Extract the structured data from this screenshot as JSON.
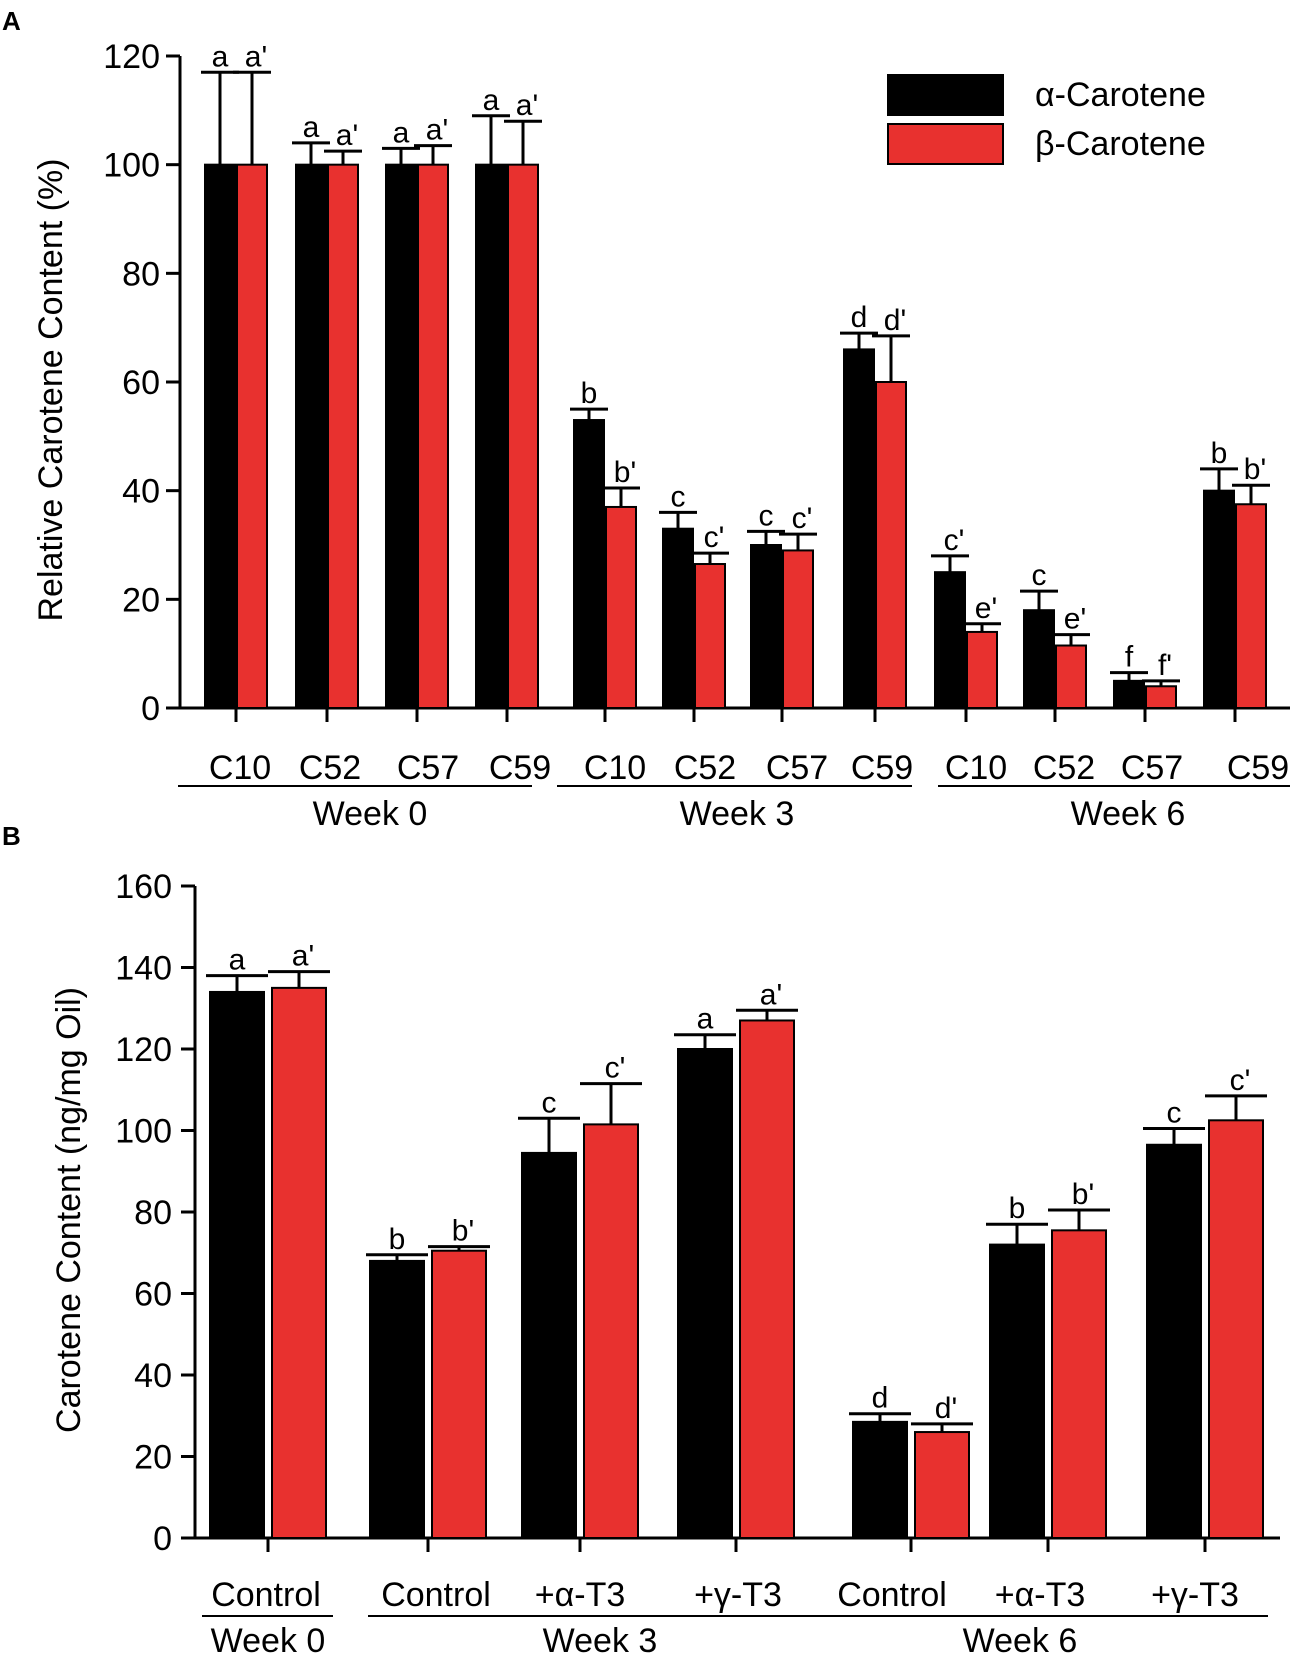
{
  "colors": {
    "alpha": "#000000",
    "beta": "#e8312f",
    "axis": "#000000"
  },
  "chart_data": [
    {
      "panel": "A",
      "type": "bar",
      "ylabel": "Relative Carotene Content (%)",
      "ylim": [
        0,
        120
      ],
      "yticks": [
        "0",
        "20",
        "40",
        "60",
        "80",
        "100",
        "120"
      ],
      "legend": [
        "α-Carotene",
        "β-Carotene"
      ],
      "legend_position": "top-right",
      "categories": [
        "C10",
        "C52",
        "C57",
        "C59",
        "C10",
        "C52",
        "C57",
        "C59",
        "C10",
        "C52",
        "C57",
        "C59"
      ],
      "group_labels": [
        "Week 0",
        "Week 3",
        "Week 6"
      ],
      "series": [
        {
          "name": "α-Carotene",
          "values": [
            100,
            100,
            100,
            100,
            53,
            33,
            30,
            66,
            25,
            18,
            5,
            40
          ],
          "errors": [
            17,
            4,
            3,
            9,
            2,
            3,
            2.5,
            3,
            3,
            3.5,
            1.5,
            4
          ],
          "letters": [
            "a",
            "a",
            "a",
            "a",
            "b",
            "c",
            "c",
            "d",
            "c'",
            "c",
            "f",
            "b"
          ]
        },
        {
          "name": "β-Carotene",
          "values": [
            100,
            100,
            100,
            100,
            37,
            26.5,
            29,
            60,
            14,
            11.5,
            4,
            37.5
          ],
          "errors": [
            17,
            2.5,
            3.5,
            8,
            3.5,
            2,
            3,
            8.5,
            1.5,
            2,
            1,
            3.5
          ],
          "letters": [
            "a'",
            "a'",
            "a'",
            "a'",
            "b'",
            "c'",
            "c'",
            "d'",
            "e'",
            "e'",
            "f'",
            "b'"
          ]
        }
      ]
    },
    {
      "panel": "B",
      "type": "bar",
      "ylabel": "Carotene Content (ng/mg Oil)",
      "ylim": [
        0,
        160
      ],
      "yticks": [
        "0",
        "20",
        "40",
        "60",
        "80",
        "100",
        "120",
        "140",
        "160"
      ],
      "categories": [
        "Control",
        "Control",
        "+α-T3",
        "+γ-T3",
        "Control",
        "+α-T3",
        "+γ-T3"
      ],
      "group_labels": [
        "Week 0",
        "Week 3",
        "Week 6"
      ],
      "series": [
        {
          "name": "α-Carotene",
          "values": [
            134,
            68,
            94.5,
            120,
            28.5,
            72,
            96.5
          ],
          "errors": [
            4,
            1.5,
            8.5,
            3.5,
            2,
            5,
            4
          ],
          "letters": [
            "a",
            "b",
            "c",
            "a",
            "d",
            "b",
            "c"
          ]
        },
        {
          "name": "β-Carotene",
          "values": [
            135,
            70.5,
            101.5,
            127,
            26,
            75.5,
            102.5
          ],
          "errors": [
            4,
            1,
            10,
            2.5,
            2,
            5,
            6
          ],
          "letters": [
            "a'",
            "b'",
            "c'",
            "a'",
            "d'",
            "b'",
            "c'"
          ]
        }
      ]
    }
  ]
}
